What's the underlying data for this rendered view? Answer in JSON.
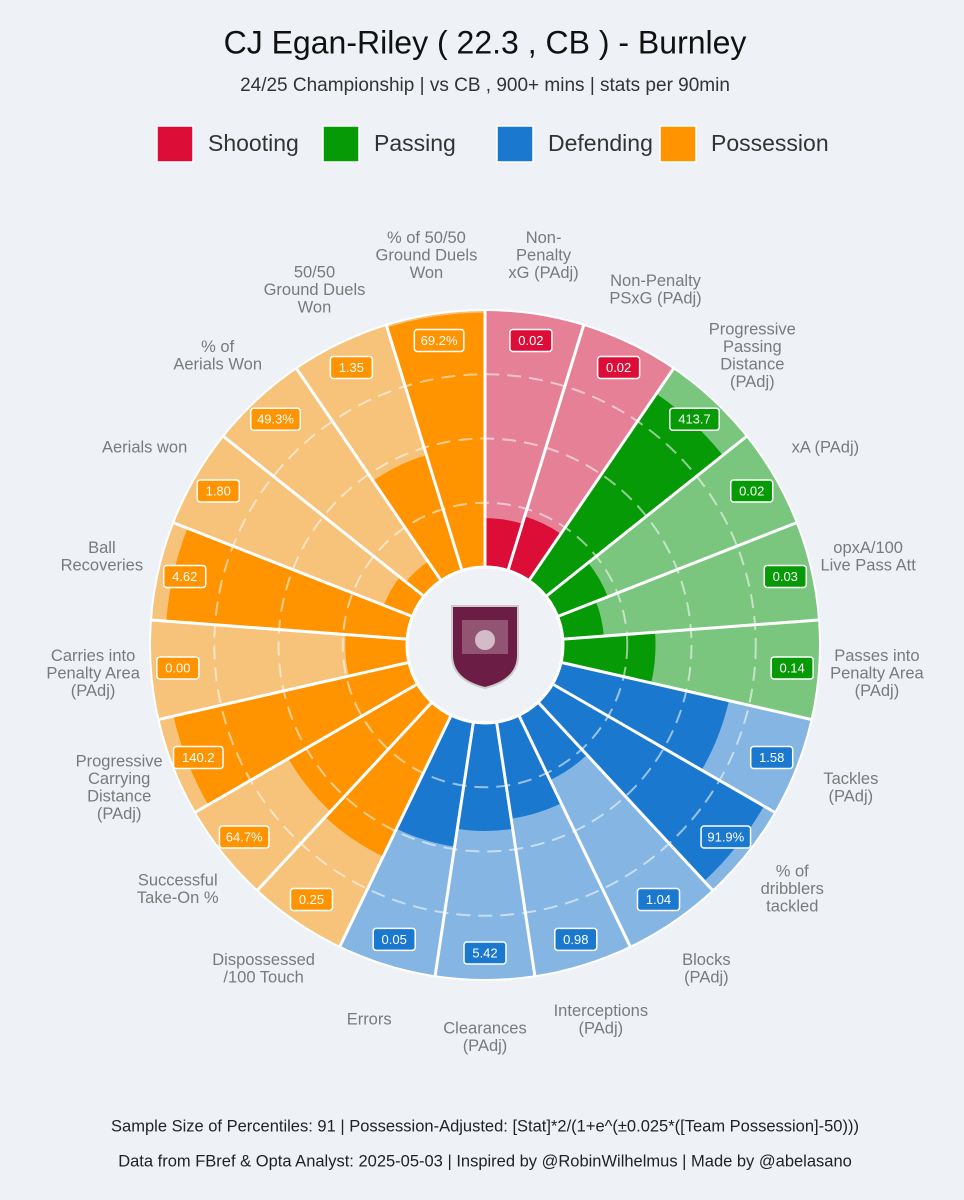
{
  "chart_data": {
    "type": "pizza",
    "title": "CJ Egan-Riley  ( 22.3 , CB ) - Burnley",
    "subtitle": "24/25 Championship | vs CB , 900+ mins | stats per 90min",
    "groups": [
      {
        "name": "Shooting",
        "color": "#dc0d36"
      },
      {
        "name": "Passing",
        "color": "#069a06"
      },
      {
        "name": "Defending",
        "color": "#1a78cf"
      },
      {
        "name": "Possession",
        "color": "#ff9300"
      }
    ],
    "categories": [
      "Non-\nPenalty\nxG (PAdj)",
      "Non-Penalty\nPSxG (PAdj)",
      "Progressive\nPassing\nDistance\n(PAdj)",
      "xA (PAdj)",
      "opxA/100\nLive Pass Att",
      "Passes into\nPenalty Area\n(PAdj)",
      "Tackles\n(PAdj)",
      "% of\ndribblers\ntackled",
      "Blocks\n(PAdj)",
      "Interceptions\n(PAdj)",
      "Clearances\n(PAdj)",
      "Errors",
      "Dispossessed\n/100 Touch",
      "Successful\nTake-On %",
      "Progressive\nCarrying\nDistance\n(PAdj)",
      "Carries into\nPenalty Area\n(PAdj)",
      "Ball\nRecoveries",
      "Aerials won",
      "% of\nAerials Won",
      "50/50\nGround Duels\nWon",
      "% of 50/50\nGround Duels\nWon"
    ],
    "slice_groups": [
      0,
      0,
      1,
      1,
      1,
      1,
      2,
      2,
      2,
      2,
      2,
      2,
      3,
      3,
      3,
      3,
      3,
      3,
      3,
      3,
      3
    ],
    "values": [
      19,
      22,
      88,
      21,
      16,
      36,
      67,
      95,
      28,
      38,
      42,
      49,
      61,
      58,
      94,
      24,
      94,
      12,
      9,
      47,
      99
    ],
    "stat_labels": [
      "0.02",
      "0.02",
      "413.7",
      "0.02",
      "0.03",
      "0.14",
      "1.58",
      "91.9%",
      "1.04",
      "0.98",
      "5.42",
      "0.05",
      "0.25",
      "64.7%",
      "140.2",
      "0.00",
      "4.62",
      "1.80",
      "49.3%",
      "1.35",
      "69.2%"
    ],
    "rlim": [
      0,
      100
    ],
    "rticks": [
      25,
      50,
      75
    ],
    "footer": [
      "Sample Size of Percentiles:  91  |  Possession-Adjusted: [Stat]*2/(1+e^(±0.025*([Team Possession]-50)))",
      "Data from FBref & Opta Analyst: 2025-05-03  |  Inspired by @RobinWilhelmus  |  Made by @abelasano"
    ]
  }
}
